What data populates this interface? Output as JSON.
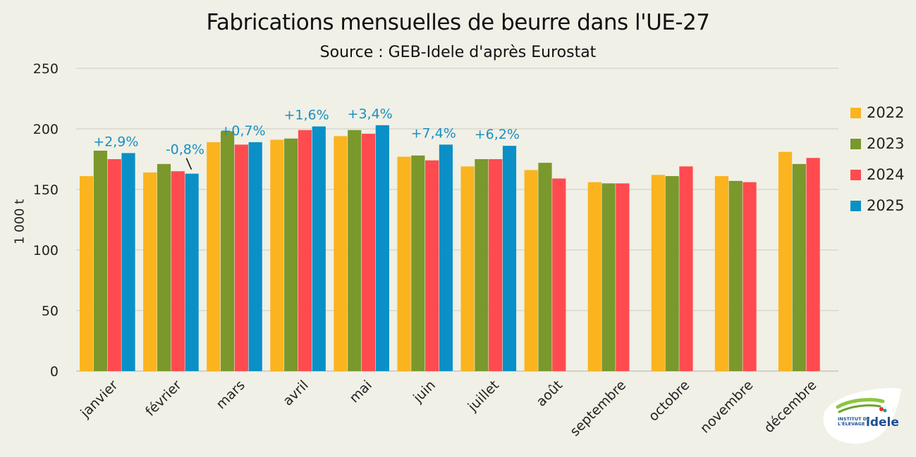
{
  "chart_data": {
    "type": "bar",
    "title": "Fabrications mensuelles de beurre dans l'UE-27",
    "subtitle": "Source : GEB-Idele d'après Eurostat",
    "ylabel": "1 000 t",
    "xlabel": "",
    "ylim": [
      0,
      250
    ],
    "yticks": [
      "0",
      "50",
      "100",
      "150",
      "200",
      "250"
    ],
    "grid": true,
    "legend_position": "right",
    "categories": [
      "janvier",
      "février",
      "mars",
      "avril",
      "mai",
      "juin",
      "juillet",
      "août",
      "septembre",
      "octobre",
      "novembre",
      "décembre"
    ],
    "series": [
      {
        "name": "2022",
        "color": "#fbb41e",
        "values": [
          161,
          164,
          189,
          191,
          194,
          177,
          169,
          166,
          156,
          162,
          161,
          181
        ]
      },
      {
        "name": "2023",
        "color": "#7a982c",
        "values": [
          182,
          171,
          198,
          192,
          199,
          178,
          175,
          172,
          155,
          161,
          157,
          171
        ]
      },
      {
        "name": "2024",
        "color": "#ff4b4f",
        "values": [
          175,
          165,
          187,
          199,
          196,
          174,
          175,
          159,
          155,
          169,
          156,
          176
        ]
      },
      {
        "name": "2025",
        "color": "#0a90c6",
        "values": [
          180,
          163,
          189,
          202,
          203,
          187,
          186,
          null,
          null,
          null,
          null,
          null
        ]
      }
    ],
    "annotations": [
      {
        "text": "+2,9%",
        "category": "janvier"
      },
      {
        "text": "-0,8%",
        "category": "février"
      },
      {
        "text": "+0,7%",
        "category": "mars"
      },
      {
        "text": "+1,6%",
        "category": "avril"
      },
      {
        "text": "+3,4%",
        "category": "mai"
      },
      {
        "text": "+7,4%",
        "category": "juin"
      },
      {
        "text": "+6,2%",
        "category": "juillet"
      }
    ],
    "annotation_color": "#1a8fc3"
  },
  "logo": {
    "lines": [
      "INSTITUT DE",
      "L'ÉLEVAGE"
    ],
    "brand": "idele"
  }
}
